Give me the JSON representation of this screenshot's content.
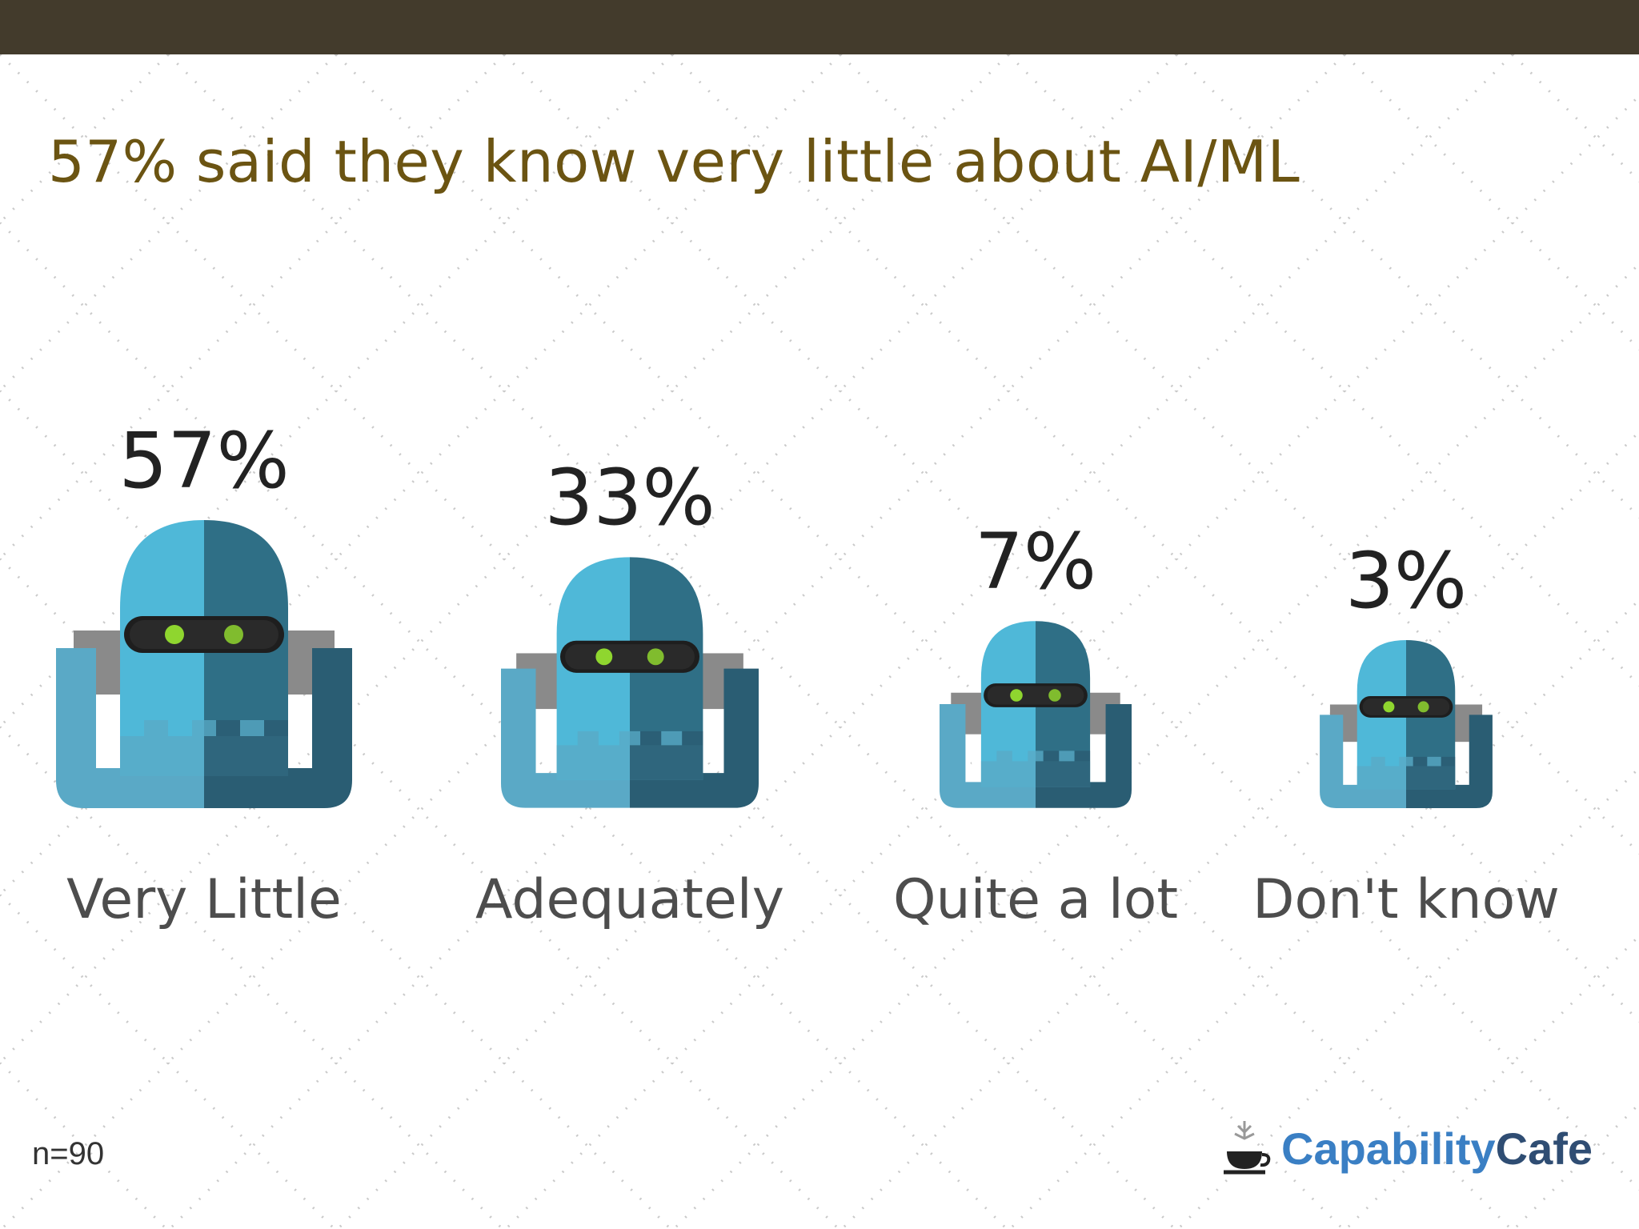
{
  "headline": "57% said they know very little about AI/ML",
  "sample_note": "n=90",
  "brand": {
    "part1": "Capability",
    "part2": "Cafe",
    "icon": "coffee-cup-icon"
  },
  "colors": {
    "top_bar": "#433b2c",
    "headline": "#6b5412",
    "robot_light": "#4fb8d8",
    "robot_dark": "#2f6f86",
    "robot_frame_light": "#5aa9c6",
    "robot_frame_dark": "#2a5d73",
    "robot_eye": "#8fd62f",
    "robot_visor": "#1e1e1e",
    "robot_ear": "#8a8a8a"
  },
  "chart_data": {
    "type": "bar",
    "mark": "robot-icon-scaled",
    "title": "57% said they know very little about AI/ML",
    "categories": [
      "Very Little",
      "Adequately",
      "Quite a lot",
      "Don't know"
    ],
    "values": [
      57,
      33,
      7,
      3
    ],
    "value_labels": [
      "57%",
      "33%",
      "7%",
      "3%"
    ],
    "unit": "%"
  }
}
